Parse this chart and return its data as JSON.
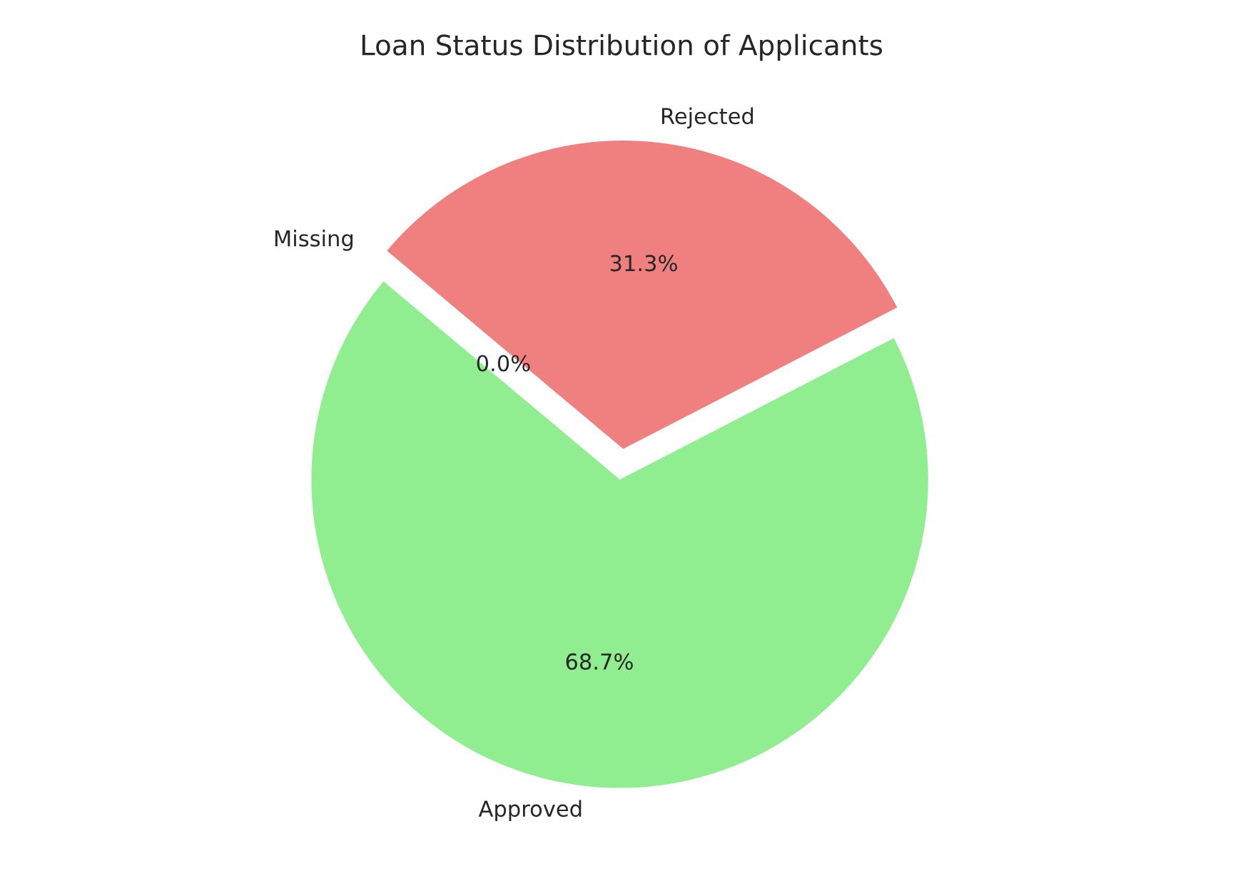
{
  "chart_data": {
    "type": "pie",
    "title": "Loan Status Distribution of Applicants",
    "categories": [
      "Approved",
      "Rejected",
      "Missing"
    ],
    "values": [
      68.7,
      31.3,
      0.0
    ],
    "colors": [
      "#90ee90",
      "#f08080",
      "#87cefa"
    ],
    "value_labels": [
      "68.7%",
      "31.3%",
      "0.0%"
    ]
  }
}
